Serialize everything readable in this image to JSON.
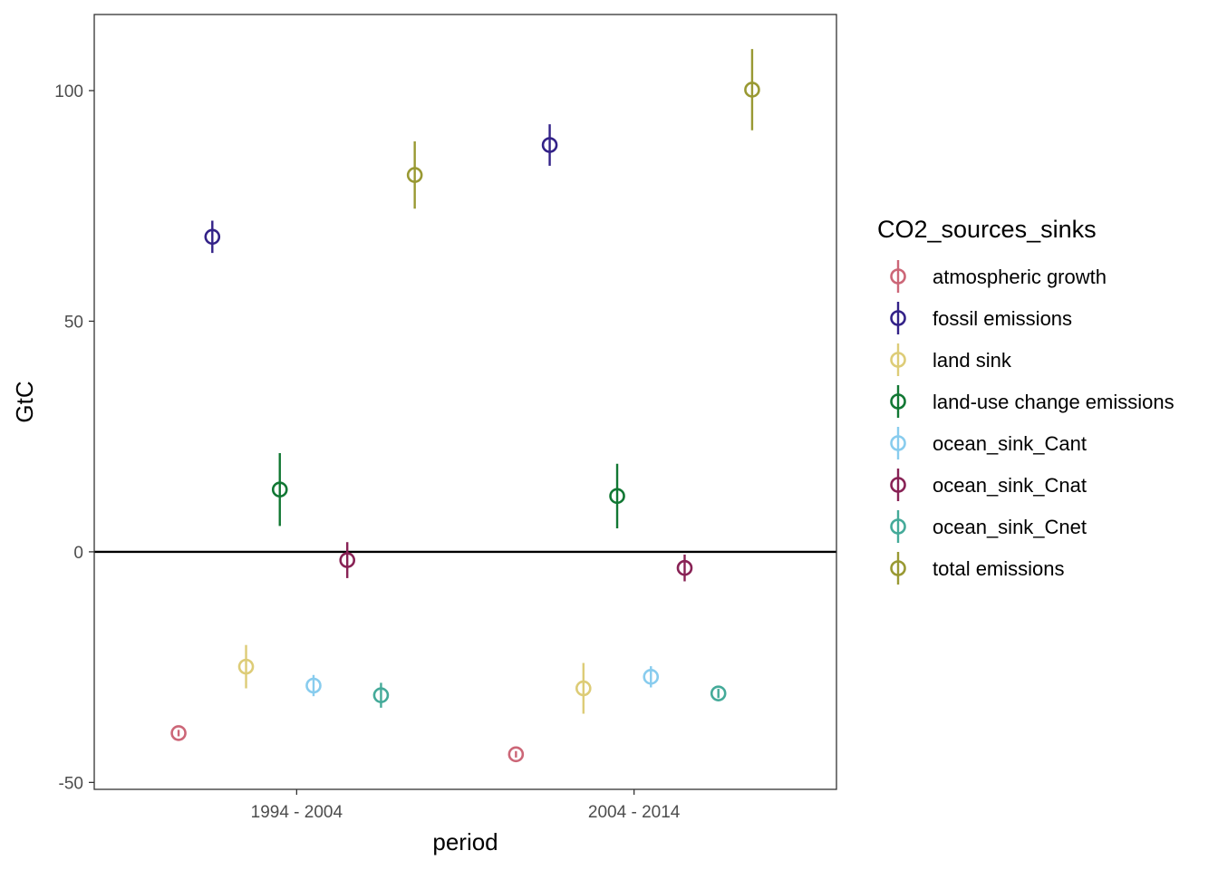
{
  "chart_data": {
    "type": "scatter",
    "xlabel": "period",
    "ylabel": "GtC",
    "categories": [
      "1994 - 2004",
      "2004 - 2014"
    ],
    "ylim": [
      -51.5,
      116.5
    ],
    "yticks": [
      -50,
      0,
      50,
      100
    ],
    "ytick_labels": [
      "-50",
      "0",
      "50",
      "100"
    ],
    "reference_line_y": 0,
    "grid": false,
    "legend": {
      "title": "CO2_sources_sinks",
      "position": "right"
    },
    "series": [
      {
        "name": "atmospheric growth",
        "color": "#CC6677",
        "points": [
          {
            "period": "1994 - 2004",
            "y": -39.3,
            "ymin": -40.0,
            "ymax": -38.6
          },
          {
            "period": "2004 - 2014",
            "y": -43.9,
            "ymin": -44.6,
            "ymax": -43.2
          }
        ]
      },
      {
        "name": "fossil emissions",
        "color": "#332288",
        "points": [
          {
            "period": "1994 - 2004",
            "y": 68.3,
            "ymin": 64.8,
            "ymax": 71.8
          },
          {
            "period": "2004 - 2014",
            "y": 88.2,
            "ymin": 83.7,
            "ymax": 92.7
          }
        ]
      },
      {
        "name": "land sink",
        "color": "#DDCC77",
        "points": [
          {
            "period": "1994 - 2004",
            "y": -24.9,
            "ymin": -29.6,
            "ymax": -20.2
          },
          {
            "period": "2004 - 2014",
            "y": -29.6,
            "ymin": -35.1,
            "ymax": -24.1
          }
        ]
      },
      {
        "name": "land-use change emissions",
        "color": "#117733",
        "points": [
          {
            "period": "1994 - 2004",
            "y": 13.5,
            "ymin": 5.6,
            "ymax": 21.4
          },
          {
            "period": "2004 - 2014",
            "y": 12.1,
            "ymin": 5.1,
            "ymax": 19.1
          }
        ]
      },
      {
        "name": "ocean_sink_Cant",
        "color": "#88CCEE",
        "points": [
          {
            "period": "1994 - 2004",
            "y": -29.0,
            "ymin": -31.3,
            "ymax": -26.7
          },
          {
            "period": "2004 - 2014",
            "y": -27.1,
            "ymin": -29.4,
            "ymax": -24.8
          }
        ]
      },
      {
        "name": "ocean_sink_Cnat",
        "color": "#882255",
        "points": [
          {
            "period": "1994 - 2004",
            "y": -1.8,
            "ymin": -5.7,
            "ymax": 2.1
          },
          {
            "period": "2004 - 2014",
            "y": -3.5,
            "ymin": -6.4,
            "ymax": -0.6
          }
        ]
      },
      {
        "name": "ocean_sink_Cnet",
        "color": "#44AA99",
        "points": [
          {
            "period": "1994 - 2004",
            "y": -31.1,
            "ymin": -33.8,
            "ymax": -28.4
          },
          {
            "period": "2004 - 2014",
            "y": -30.7,
            "ymin": -31.7,
            "ymax": -29.7
          }
        ]
      },
      {
        "name": "total emissions",
        "color": "#999933",
        "points": [
          {
            "period": "1994 - 2004",
            "y": 81.7,
            "ymin": 74.4,
            "ymax": 89.0
          },
          {
            "period": "2004 - 2014",
            "y": 100.2,
            "ymin": 91.4,
            "ymax": 109.0
          }
        ]
      }
    ]
  }
}
